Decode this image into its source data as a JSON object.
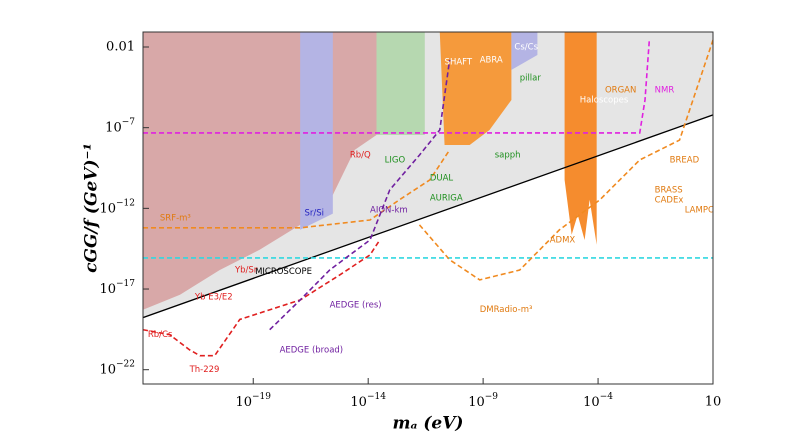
{
  "chart_data": {
    "type": "region",
    "xlabel": "mₐ (eV)",
    "ylabel": "cGG/f (GeV)⁻¹",
    "xscale": "log",
    "yscale": "log",
    "xlim": [
      1.6e-24,
      10
    ],
    "ylim": [
      1.3e-23,
      0.085
    ],
    "xticks": [
      {
        "value": 1e-19,
        "label": "10−19"
      },
      {
        "value": 1e-14,
        "label": "10−14"
      },
      {
        "value": 1e-09,
        "label": "10−9"
      },
      {
        "value": 0.0001,
        "label": "10−4"
      },
      10
    ],
    "yticks": [
      0.01,
      {
        "value": 1e-07,
        "label": "10−7"
      },
      {
        "value": 1e-12,
        "label": "10−12"
      },
      {
        "value": 1e-17,
        "label": "10−17"
      },
      {
        "value": 1e-22,
        "label": "10−22"
      }
    ],
    "series": [
      {
        "kind": "fill",
        "color": "#e5e5e5",
        "x": [
          1.6e-24,
          10,
          10,
          1.6e-24
        ],
        "values": [
          0.085,
          0.085,
          6.2e-07,
          1.7e-19
        ]
      },
      {
        "kind": "fill",
        "color": "#d8a8a8",
        "x": [
          1.6e-24,
          2.3e-14,
          2.3e-14,
          2.6e-15,
          2.9e-16,
          1.1e-17,
          1.9e-19,
          3.5e-21,
          6.5e-23,
          1.6e-24
        ],
        "values": [
          0.085,
          0.085,
          3.5e-08,
          4.2e-09,
          6.9e-12,
          9.5e-14,
          2.7e-15,
          1.5e-16,
          4.4e-18,
          5.2e-19
        ]
      },
      {
        "kind": "fill",
        "color": "#b4b4e4",
        "x": [
          1.1e-17,
          2.9e-16,
          2.9e-16,
          1.1e-17
        ],
        "values": [
          0.085,
          0.085,
          4.7e-13,
          4.7e-14
        ]
      },
      {
        "kind": "fill",
        "color": "#b6d8b0",
        "x": [
          2.3e-14,
          2.9e-12,
          2.9e-12,
          2.3e-14
        ],
        "values": [
          0.085,
          0.085,
          3.5e-08,
          3.5e-08
        ]
      },
      {
        "kind": "fill",
        "color": "#f59a3c",
        "x": [
          1.3e-11,
          1.7e-08,
          1.7e-08,
          1.9e-09,
          2.6e-10,
          2.1e-11
        ],
        "values": [
          0.085,
          0.085,
          5.2e-06,
          7.2e-08,
          8.5e-09,
          8.5e-09
        ]
      },
      {
        "kind": "fill",
        "color": "#b4b4e4",
        "x": [
          1.7e-08,
          2.3e-07,
          2.3e-07,
          1.7e-08
        ],
        "values": [
          0.085,
          0.085,
          0.0032,
          0.00038
        ]
      },
      {
        "kind": "fill",
        "color": "#f58c2e",
        "x": [
          3.5e-06,
          8.7e-05,
          8.7e-05,
          4.3e-05,
          2.6e-05,
          1.3e-05,
          7.1e-06,
          3.5e-06
        ],
        "values": [
          0.085,
          0.085,
          5.5e-15,
          3.4e-12,
          1.1e-14,
          4e-13,
          2.3e-14,
          5.8e-11
        ]
      },
      {
        "kind": "line",
        "color": "#000000",
        "dash": false,
        "x": [
          1.6e-24,
          10
        ],
        "values": [
          1.7e-19,
          6.2e-07
        ]
      },
      {
        "kind": "line",
        "color": "#e020e0",
        "dash": true,
        "x": [
          1.6e-24,
          0.0065,
          0.011,
          0.017
        ],
        "values": [
          4.7e-08,
          4.7e-08,
          5.2e-06,
          0.027
        ]
      },
      {
        "kind": "line",
        "color": "#30d8e0",
        "dash": true,
        "x": [
          1.6e-24,
          10
        ],
        "values": [
          8.5e-16,
          8.5e-16
        ]
      },
      {
        "kind": "line",
        "color": "#f08a20",
        "dash": true,
        "x": [
          1.6e-24,
          1.1e-17,
          1.2e-14,
          2.3e-13,
          4.8e-12,
          3.5e-11
        ],
        "values": [
          6.2e-14,
          6.2e-14,
          1.9e-13,
          3.4e-12,
          5.8e-11,
          4.2e-09
        ]
      },
      {
        "kind": "line",
        "color": "#e02020",
        "dash": true,
        "x": [
          1.6e-24,
          2.3e-23,
          1.7e-22,
          4.8e-22,
          2.1e-21,
          2.6e-20,
          1.1e-17,
          5.9e-16,
          1.2e-14,
          3.2e-14
        ],
        "values": [
          3e-20,
          1.5e-20,
          1.7e-21,
          7.4e-22,
          7.4e-22,
          1.3e-19,
          2.1e-18,
          7.6e-17,
          1.3e-15,
          1.1e-14
        ]
      },
      {
        "kind": "line",
        "color": "#7020a0",
        "dash": true,
        "x": [
          5.2e-19,
          1.1e-17,
          2.1e-16,
          1.2e-14,
          8.7e-14,
          1.7e-12,
          1.3e-11,
          3.5e-11
        ],
        "values": [
          3e-20,
          2.1e-18,
          1.5e-16,
          1.1e-14,
          1.4e-11,
          2e-09,
          7.2e-08,
          0.0016
        ]
      },
      {
        "kind": "line",
        "color": "#f08a20",
        "dash": true,
        "x": [
          1.7e-12,
          3.5e-11,
          7.1e-10,
          3.9e-08,
          2.1e-06,
          0.00012,
          0.0065,
          0.35,
          10
        ],
        "values": [
          9.5e-14,
          6.5e-16,
          3.7e-17,
          1.5e-16,
          4.7e-14,
          3.4e-12,
          1e-09,
          1.7e-08,
          0.027
        ]
      }
    ],
    "annotations": [
      {
        "text": "SRF-m³",
        "x": 8.7e-24,
        "y": 2.6e-13,
        "color": "#e07a10"
      },
      {
        "text": "Th-229",
        "x": 1.7e-22,
        "y": 1e-22,
        "color": "#e02020"
      },
      {
        "text": "MICROSCOPE",
        "x": 1.2e-19,
        "y": 1.2e-16,
        "color": "#000000"
      },
      {
        "text": "Rb/Cs",
        "x": 2.6e-24,
        "y": 1.5e-20,
        "color": "#e02020"
      },
      {
        "text": "Yb E3/E2",
        "x": 2.9e-22,
        "y": 3.3e-18,
        "color": "#e02020"
      },
      {
        "text": "Yb/Sr",
        "x": 1.6e-20,
        "y": 1.5e-16,
        "color": "#e02020"
      },
      {
        "text": "Sr/Si",
        "x": 1.7e-17,
        "y": 5.2e-13,
        "color": "#2020c0"
      },
      {
        "text": "Rb/Q",
        "x": 1.6e-15,
        "y": 2e-09,
        "color": "#e02020"
      },
      {
        "text": "AION-km",
        "x": 1.2e-14,
        "y": 8.1e-13,
        "color": "#7020a0"
      },
      {
        "text": "AEDGE (broad)",
        "x": 1.4e-18,
        "y": 1.7e-21,
        "color": "#7020a0"
      },
      {
        "text": "AEDGE (res)",
        "x": 2.1e-16,
        "y": 1e-18,
        "color": "#7020a0"
      },
      {
        "text": "LIGO",
        "x": 5.2e-14,
        "y": 1e-09,
        "color": "#209020"
      },
      {
        "text": "DUAL",
        "x": 4.8e-12,
        "y": 7.8e-11,
        "color": "#209020"
      },
      {
        "text": "AURIGA",
        "x": 4.8e-12,
        "y": 4.5e-12,
        "color": "#209020"
      },
      {
        "text": "SHAFT",
        "x": 2.1e-11,
        "y": 0.0012,
        "color": "#ffffff"
      },
      {
        "text": "ABRA",
        "x": 7.1e-10,
        "y": 0.0016,
        "color": "#ffffff"
      },
      {
        "text": "Cs/Cs",
        "x": 2.3e-08,
        "y": 0.01,
        "color": "#ffffff"
      },
      {
        "text": "pillar",
        "x": 3.9e-08,
        "y": 0.00012,
        "color": "#209020"
      },
      {
        "text": "sapph",
        "x": 3.2e-09,
        "y": 2e-09,
        "color": "#209020"
      },
      {
        "text": "Haloscopes",
        "x": 1.6e-05,
        "y": 5.2e-06,
        "color": "#ffffff"
      },
      {
        "text": "ORGAN",
        "x": 0.0002,
        "y": 2.2e-05,
        "color": "#e07a10"
      },
      {
        "text": "NMR",
        "x": 0.029,
        "y": 2.2e-05,
        "color": "#e020e0"
      },
      {
        "text": "ADMX",
        "x": 7.9e-07,
        "y": 1.1e-14,
        "color": "#e07a10"
      },
      {
        "text": "DMRadio-m³",
        "x": 7.1e-10,
        "y": 5.2e-19,
        "color": "#e07a10"
      },
      {
        "text": "BRASS",
        "x": 0.029,
        "y": 1.4e-11,
        "color": "#e07a10"
      },
      {
        "text": "CADEx",
        "x": 0.029,
        "y": 3.4e-12,
        "color": "#e07a10"
      },
      {
        "text": "BREAD",
        "x": 0.13,
        "y": 1e-09,
        "color": "#e07a10"
      },
      {
        "text": "LAMPOST",
        "x": 0.59,
        "y": 8.1e-13,
        "color": "#e07a10"
      }
    ]
  }
}
